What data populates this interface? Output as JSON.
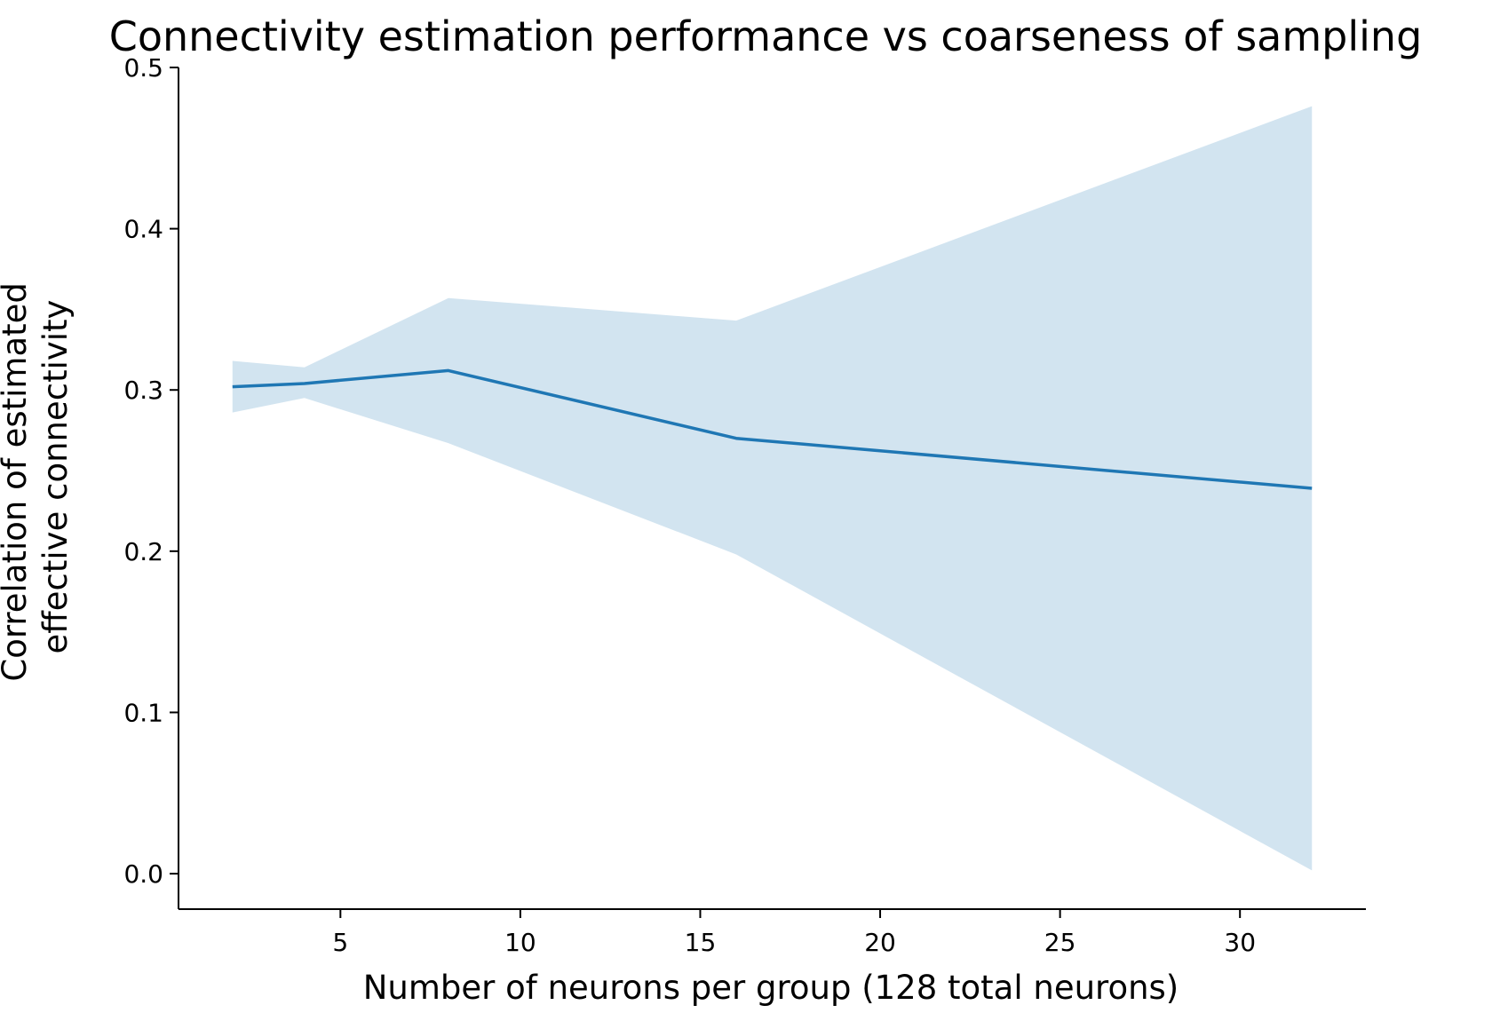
{
  "chart_data": {
    "type": "line",
    "title": "Connectivity estimation performance vs coarseness of sampling",
    "xlabel": "Number of neurons per group (128 total neurons)",
    "ylabel_lines": [
      "Correlation of estimated",
      "effective connectivity"
    ],
    "xlim": [
      0.5,
      33.5
    ],
    "ylim": [
      -0.022,
      0.5
    ],
    "x_ticks": [
      5,
      10,
      15,
      20,
      25,
      30
    ],
    "y_ticks": [
      0.0,
      0.1,
      0.2,
      0.3,
      0.4,
      0.5
    ],
    "y_tick_decimals": 1,
    "grid": false,
    "series": [
      {
        "x": [
          2,
          4,
          8,
          16,
          32
        ],
        "y": [
          0.302,
          0.304,
          0.312,
          0.27,
          0.239
        ],
        "lower": [
          0.286,
          0.295,
          0.267,
          0.198,
          0.002
        ],
        "upper": [
          0.318,
          0.314,
          0.357,
          0.343,
          0.476
        ],
        "color": "#1f77b4",
        "band_color": "#1f77b4",
        "band_opacity": 0.2
      }
    ]
  }
}
